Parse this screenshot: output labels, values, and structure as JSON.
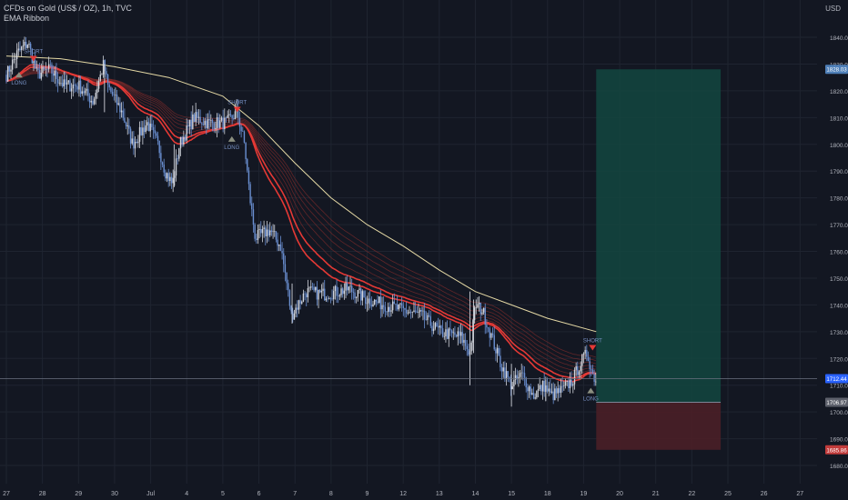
{
  "legend": {
    "symbol_line": "CFDs on Gold (US$ / OZ), 1h, TVC",
    "indicator": "EMA Ribbon"
  },
  "currency": "USD",
  "colors": {
    "background": "#131722",
    "candle_up": "#d1d4dc",
    "candle_down": "#6a8fd1",
    "ribbon_fast": "#e53935",
    "ribbon_slow": "#7b2b2b",
    "ema_long": "#e5d9a5",
    "profit_zone": "#13473f",
    "loss_zone": "#4a1f27",
    "signal": "#7891c4",
    "grid": "#1f2430"
  },
  "chart_data": {
    "type": "candlestick",
    "title": "CFDs on Gold (US$ / OZ), 1h, TVC",
    "ylim": [
      1674,
      1850
    ],
    "y_ticks": [
      1680,
      1690,
      1700,
      1710,
      1720,
      1730,
      1740,
      1750,
      1760,
      1770,
      1780,
      1790,
      1800,
      1810,
      1820,
      1830,
      1840
    ],
    "x_ticks": [
      "27",
      "28",
      "29",
      "30",
      "Jul",
      "4",
      "5",
      "6",
      "7",
      "8",
      "9",
      "12",
      "13",
      "14",
      "15",
      "18",
      "19",
      "20",
      "21",
      "22",
      "25",
      "26",
      "27"
    ],
    "price_path": [
      [
        0,
        1826
      ],
      [
        0.3,
        1834
      ],
      [
        0.6,
        1838
      ],
      [
        0.85,
        1826
      ],
      [
        1.2,
        1828
      ],
      [
        1.6,
        1822
      ],
      [
        2.0,
        1822
      ],
      [
        2.4,
        1816
      ],
      [
        2.7,
        1830
      ],
      [
        2.8,
        1822
      ],
      [
        3.2,
        1812
      ],
      [
        3.5,
        1800
      ],
      [
        3.9,
        1808
      ],
      [
        4.2,
        1800
      ],
      [
        4.4,
        1790
      ],
      [
        4.6,
        1785
      ],
      [
        4.8,
        1800
      ],
      [
        5.2,
        1810
      ],
      [
        5.6,
        1808
      ],
      [
        6.1,
        1808
      ],
      [
        6.4,
        1812
      ],
      [
        6.6,
        1800
      ],
      [
        6.75,
        1780
      ],
      [
        6.9,
        1765
      ],
      [
        7.3,
        1768
      ],
      [
        7.6,
        1762
      ],
      [
        7.75,
        1750
      ],
      [
        7.9,
        1736
      ],
      [
        8.3,
        1745
      ],
      [
        8.8,
        1744
      ],
      [
        9.2,
        1745
      ],
      [
        9.5,
        1746
      ],
      [
        10.0,
        1742
      ],
      [
        10.5,
        1740
      ],
      [
        11.0,
        1738
      ],
      [
        11.5,
        1736
      ],
      [
        12.0,
        1730
      ],
      [
        12.6,
        1728
      ],
      [
        12.85,
        1722
      ],
      [
        13.0,
        1740
      ],
      [
        13.2,
        1738
      ],
      [
        13.4,
        1730
      ],
      [
        13.7,
        1718
      ],
      [
        14.0,
        1710
      ],
      [
        14.3,
        1714
      ],
      [
        14.6,
        1706
      ],
      [
        14.9,
        1710
      ],
      [
        15.1,
        1706
      ],
      [
        15.4,
        1708
      ],
      [
        15.7,
        1712
      ],
      [
        15.9,
        1718
      ],
      [
        16.1,
        1722
      ],
      [
        16.25,
        1714
      ],
      [
        16.35,
        1712
      ]
    ],
    "price_range": {
      "low": 1682,
      "high": 1843
    },
    "ema_long_path": [
      [
        0,
        1833
      ],
      [
        1.5,
        1832
      ],
      [
        3.0,
        1829
      ],
      [
        4.5,
        1825
      ],
      [
        6.0,
        1818
      ],
      [
        7.0,
        1807
      ],
      [
        8.0,
        1793
      ],
      [
        9.0,
        1780
      ],
      [
        10.0,
        1770
      ],
      [
        11.0,
        1762
      ],
      [
        12.0,
        1753
      ],
      [
        13.0,
        1745
      ],
      [
        14.0,
        1740
      ],
      [
        15.0,
        1735
      ],
      [
        16.35,
        1730
      ]
    ],
    "signals": [
      {
        "label": "SHORT",
        "x": 0.75,
        "price": 1832,
        "position": "above"
      },
      {
        "label": "LONG",
        "x": 0.35,
        "price": 1826,
        "position": "below"
      },
      {
        "label": "SHORT",
        "x": 6.4,
        "price": 1813,
        "position": "above"
      },
      {
        "label": "LONG",
        "x": 6.25,
        "price": 1802,
        "position": "below"
      },
      {
        "label": "SHORT",
        "x": 16.25,
        "price": 1724,
        "position": "above"
      },
      {
        "label": "LONG",
        "x": 16.2,
        "price": 1708,
        "position": "below"
      }
    ],
    "position_tool": {
      "x_start": 16.35,
      "x_end": 19.8,
      "entry": 1712.44,
      "target": 1828.03,
      "stop": 1685.86
    },
    "current_price": 1712.44,
    "price_labels": [
      {
        "text": "1828.03",
        "price": 1828.03,
        "color": "#4e7fb8"
      },
      {
        "text": "1712.44",
        "price": 1712.44,
        "color": "#2962ff"
      },
      {
        "text": "1706.97",
        "price": 1706.97,
        "color": "#5d606b"
      },
      {
        "text": "1685.86",
        "price": 1685.86,
        "color": "#c23b3b"
      }
    ]
  }
}
